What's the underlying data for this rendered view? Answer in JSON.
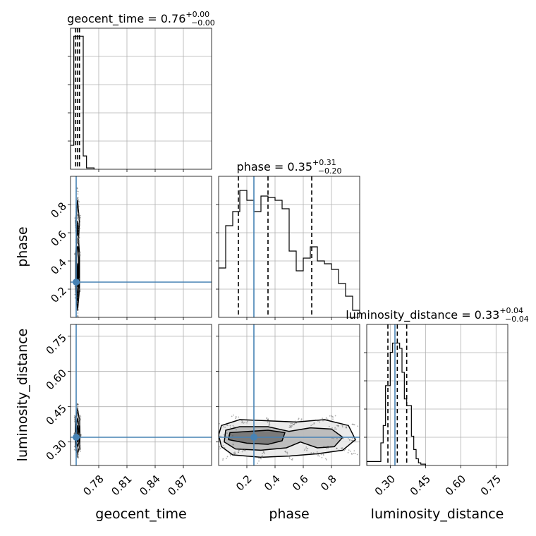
{
  "chart_data": {
    "type": "corner",
    "grid": true,
    "truth_color": "#4682b4",
    "parameters": [
      {
        "name": "geocent_time",
        "axis_label": "geocent_time",
        "range": [
          0.75,
          0.9
        ],
        "ticks": [
          0.78,
          0.81,
          0.84,
          0.87
        ],
        "tick_labels": [
          "0.78",
          "0.81",
          "0.84",
          "0.87"
        ],
        "truth": 0.756,
        "median": 0.76,
        "plus": "+0.00",
        "minus": "−0.00",
        "title_prefix": "geocent_time = 0.76",
        "quantiles": [
          0.7555,
          0.7575,
          0.7595
        ],
        "hist_edges": [
          0.75,
          0.7535,
          0.7545,
          0.7555,
          0.7565,
          0.7575,
          0.7585,
          0.7595,
          0.7605,
          0.7615,
          0.7625,
          0.7635,
          0.767,
          0.775
        ],
        "hist_counts": [
          0.18,
          1.0,
          1.0,
          1.0,
          1.0,
          1.0,
          1.0,
          1.0,
          1.0,
          1.0,
          1.0,
          0.1,
          0.01
        ],
        "hist_ylim": [
          0,
          1.06
        ]
      },
      {
        "name": "phase",
        "axis_label": "phase",
        "range": [
          0.0,
          1.0
        ],
        "ticks": [
          0.2,
          0.4,
          0.6,
          0.8
        ],
        "tick_labels": [
          "0.2",
          "0.4",
          "0.6",
          "0.8"
        ],
        "truth": 0.25,
        "median": 0.35,
        "plus": "+0.31",
        "minus": "−0.20",
        "title_prefix": "phase = 0.35",
        "quantiles": [
          0.14,
          0.35,
          0.66
        ],
        "hist_edges": [
          0.0,
          0.05,
          0.1,
          0.15,
          0.2,
          0.25,
          0.3,
          0.35,
          0.4,
          0.45,
          0.5,
          0.55,
          0.6,
          0.65,
          0.7,
          0.75,
          0.8,
          0.85,
          0.9,
          0.95,
          1.0
        ],
        "hist_counts": [
          0.35,
          0.65,
          0.75,
          0.9,
          0.83,
          0.75,
          0.86,
          0.85,
          0.83,
          0.77,
          0.47,
          0.33,
          0.42,
          0.5,
          0.4,
          0.38,
          0.34,
          0.24,
          0.15,
          0.05
        ],
        "hist_ylim": [
          0,
          1.0
        ]
      },
      {
        "name": "luminosity_distance",
        "axis_label": "luminosity_distance",
        "range": [
          0.2,
          0.8
        ],
        "ticks": [
          0.3,
          0.45,
          0.6,
          0.75
        ],
        "tick_labels": [
          "0.30",
          "0.45",
          "0.60",
          "0.75"
        ],
        "truth": 0.32,
        "median": 0.33,
        "plus": "+0.04",
        "minus": "−0.04",
        "title_prefix": "luminosity_distance = 0.33",
        "quantiles": [
          0.29,
          0.33,
          0.37
        ],
        "hist_edges": [
          0.2,
          0.26,
          0.27,
          0.28,
          0.29,
          0.3,
          0.31,
          0.32,
          0.33,
          0.34,
          0.35,
          0.36,
          0.37,
          0.38,
          0.39,
          0.4,
          0.41,
          0.42,
          0.43,
          0.45
        ],
        "hist_counts": [
          0.03,
          0.17,
          0.3,
          0.6,
          0.6,
          0.85,
          0.92,
          0.92,
          0.92,
          0.88,
          0.7,
          0.5,
          0.45,
          0.45,
          0.22,
          0.12,
          0.05,
          0.02,
          0.01
        ],
        "hist_ylim": [
          0,
          1.06
        ]
      }
    ],
    "contours_2d": [
      {
        "x": "geocent_time",
        "y": "phase",
        "center": [
          0.7575,
          0.45
        ],
        "levels": [
          [
            [
              0.7575,
              0.05
            ],
            [
              0.7595,
              0.2
            ],
            [
              0.7595,
              0.45
            ],
            [
              0.7585,
              0.55
            ],
            [
              0.7595,
              0.68
            ],
            [
              0.7585,
              0.75
            ],
            [
              0.7575,
              0.83
            ],
            [
              0.7565,
              0.75
            ],
            [
              0.7555,
              0.68
            ],
            [
              0.7565,
              0.55
            ],
            [
              0.7555,
              0.45
            ],
            [
              0.7555,
              0.2
            ]
          ],
          [
            [
              0.7575,
              0.12
            ],
            [
              0.7588,
              0.25
            ],
            [
              0.7588,
              0.42
            ],
            [
              0.758,
              0.5
            ],
            [
              0.757,
              0.5
            ],
            [
              0.7562,
              0.42
            ],
            [
              0.7562,
              0.25
            ]
          ],
          [
            [
              0.7575,
              0.58
            ],
            [
              0.7582,
              0.63
            ],
            [
              0.7575,
              0.68
            ],
            [
              0.7568,
              0.63
            ]
          ],
          [
            [
              0.7575,
              0.22
            ],
            [
              0.7581,
              0.3
            ],
            [
              0.7575,
              0.38
            ],
            [
              0.7569,
              0.3
            ]
          ]
        ]
      },
      {
        "x": "geocent_time",
        "y": "luminosity_distance",
        "center": [
          0.7575,
          0.33
        ],
        "levels": [
          [
            [
              0.7575,
              0.25
            ],
            [
              0.7597,
              0.28
            ],
            [
              0.76,
              0.33
            ],
            [
              0.7597,
              0.39
            ],
            [
              0.7575,
              0.44
            ],
            [
              0.7553,
              0.39
            ],
            [
              0.755,
              0.33
            ],
            [
              0.7553,
              0.28
            ]
          ],
          [
            [
              0.7575,
              0.28
            ],
            [
              0.759,
              0.3
            ],
            [
              0.7592,
              0.33
            ],
            [
              0.759,
              0.37
            ],
            [
              0.7575,
              0.4
            ],
            [
              0.756,
              0.37
            ],
            [
              0.7558,
              0.33
            ],
            [
              0.756,
              0.3
            ]
          ],
          [
            [
              0.7575,
              0.3
            ],
            [
              0.7583,
              0.32
            ],
            [
              0.7583,
              0.35
            ],
            [
              0.7575,
              0.37
            ],
            [
              0.7567,
              0.35
            ],
            [
              0.7567,
              0.32
            ]
          ]
        ]
      },
      {
        "x": "phase",
        "y": "luminosity_distance",
        "center": [
          0.4,
          0.33
        ],
        "levels": [
          [
            [
              0.02,
              0.28
            ],
            [
              0.1,
              0.245
            ],
            [
              0.3,
              0.235
            ],
            [
              0.5,
              0.24
            ],
            [
              0.7,
              0.25
            ],
            [
              0.88,
              0.265
            ],
            [
              0.97,
              0.31
            ],
            [
              0.92,
              0.37
            ],
            [
              0.75,
              0.395
            ],
            [
              0.55,
              0.385
            ],
            [
              0.35,
              0.39
            ],
            [
              0.15,
              0.395
            ],
            [
              0.02,
              0.37
            ],
            [
              0.0,
              0.33
            ]
          ],
          [
            [
              0.04,
              0.3
            ],
            [
              0.12,
              0.27
            ],
            [
              0.3,
              0.265
            ],
            [
              0.48,
              0.275
            ],
            [
              0.58,
              0.3
            ],
            [
              0.7,
              0.275
            ],
            [
              0.82,
              0.28
            ],
            [
              0.88,
              0.32
            ],
            [
              0.8,
              0.355
            ],
            [
              0.65,
              0.36
            ],
            [
              0.5,
              0.345
            ],
            [
              0.35,
              0.365
            ],
            [
              0.15,
              0.365
            ],
            [
              0.05,
              0.35
            ]
          ],
          [
            [
              0.07,
              0.31
            ],
            [
              0.2,
              0.295
            ],
            [
              0.35,
              0.29
            ],
            [
              0.45,
              0.305
            ],
            [
              0.47,
              0.34
            ],
            [
              0.35,
              0.35
            ],
            [
              0.22,
              0.345
            ],
            [
              0.08,
              0.34
            ]
          ]
        ]
      }
    ]
  }
}
